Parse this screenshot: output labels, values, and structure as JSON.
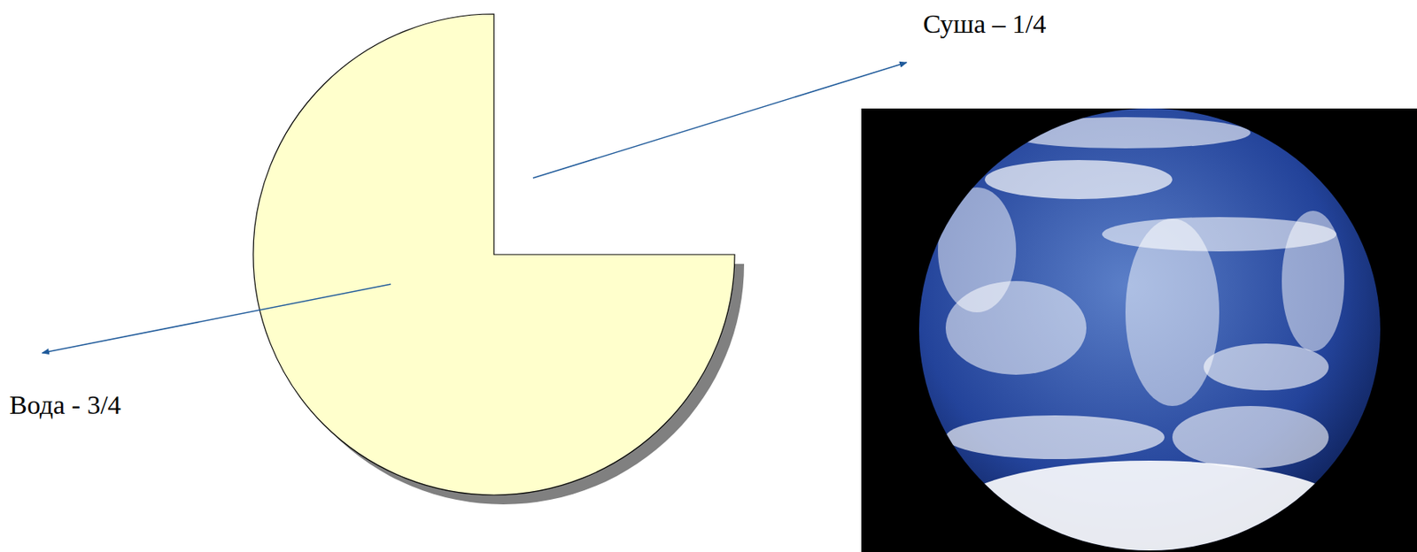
{
  "chart_data": {
    "type": "pie",
    "categories": [
      "Суша – 1/4",
      "Вода - 3/4"
    ],
    "values": [
      0.25,
      0.75
    ],
    "colors": [
      "#ffffff",
      "#ffffcc"
    ]
  }
}
